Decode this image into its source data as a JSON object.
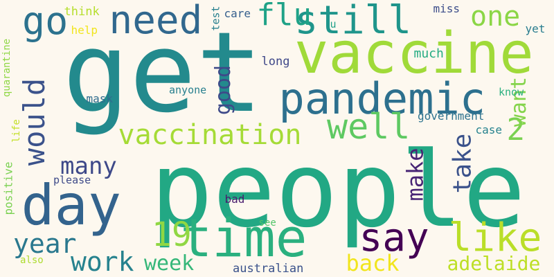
{
  "background_color": "#fdf8ef",
  "words": [
    {
      "text": "get",
      "color": "#238a8d"
    },
    {
      "text": "people",
      "color": "#22a884"
    },
    {
      "text": "vaccine",
      "color": "#a0da39"
    },
    {
      "text": "pandemic",
      "color": "#2d708e"
    },
    {
      "text": "time",
      "color": "#2ab07f"
    },
    {
      "text": "need",
      "color": "#31688e"
    },
    {
      "text": "still",
      "color": "#1f958b"
    },
    {
      "text": "day",
      "color": "#33638d"
    },
    {
      "text": "vaccination",
      "color": "#a5db36"
    },
    {
      "text": "say",
      "color": "#440154"
    },
    {
      "text": "like",
      "color": "#bade28"
    },
    {
      "text": "go",
      "color": "#2c728e"
    },
    {
      "text": "flu",
      "color": "#1fa287"
    },
    {
      "text": "well",
      "color": "#5ec962"
    },
    {
      "text": "would",
      "color": "#3b528b"
    },
    {
      "text": "19",
      "color": "#90d743"
    },
    {
      "text": "one",
      "color": "#8bd646"
    },
    {
      "text": "year",
      "color": "#2a788e"
    },
    {
      "text": "work",
      "color": "#26828e"
    },
    {
      "text": "many",
      "color": "#3e4989"
    },
    {
      "text": "2",
      "color": "#7ad151"
    },
    {
      "text": "good",
      "color": "#3e4a89"
    },
    {
      "text": "take",
      "color": "#3b528b"
    },
    {
      "text": "make",
      "color": "#482475"
    },
    {
      "text": "want",
      "color": "#84d44b"
    },
    {
      "text": "back",
      "color": "#f1e51d"
    },
    {
      "text": "week",
      "color": "#35b779"
    },
    {
      "text": "adelaide",
      "color": "#bddf26"
    },
    {
      "text": "think",
      "color": "#b5de2b"
    },
    {
      "text": "test",
      "color": "#277f8e"
    },
    {
      "text": "care",
      "color": "#355f8d"
    },
    {
      "text": "miss",
      "color": "#3d4e8a"
    },
    {
      "text": "help",
      "color": "#f1e51d"
    },
    {
      "text": "u",
      "color": "#1fa088"
    },
    {
      "text": "yet",
      "color": "#287c8e"
    },
    {
      "text": "much",
      "color": "#25ac82"
    },
    {
      "text": "long",
      "color": "#3f4889"
    },
    {
      "text": "know",
      "color": "#2ab07f"
    },
    {
      "text": "anyone",
      "color": "#277f8e"
    },
    {
      "text": "mask",
      "color": "#2f6c8e"
    },
    {
      "text": "government",
      "color": "#2c728e"
    },
    {
      "text": "case",
      "color": "#26828e"
    },
    {
      "text": "quarantine",
      "color": "#8fd744"
    },
    {
      "text": "life",
      "color": "#c2df23"
    },
    {
      "text": "positive",
      "color": "#7ad151"
    },
    {
      "text": "please",
      "color": "#3e4a89"
    },
    {
      "text": "bad",
      "color": "#481c6e"
    },
    {
      "text": "see",
      "color": "#52c569"
    },
    {
      "text": "also",
      "color": "#addc30"
    },
    {
      "text": "australian",
      "color": "#3b528b"
    }
  ]
}
